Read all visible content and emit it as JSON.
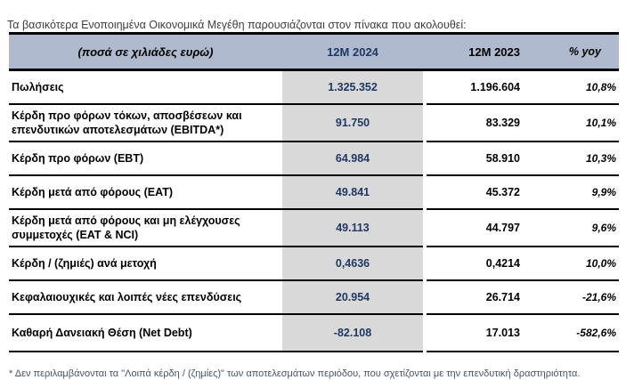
{
  "intro": "Τα βασικότερα Ενοποιημένα Οικονομικά Μεγέθη παρουσιάζονται στον πίνακα που ακολουθεί:",
  "table": {
    "header": {
      "label": "(ποσά σε χιλιάδες ευρώ)",
      "col_2024": "12M 2024",
      "col_2023": "12M 2023",
      "col_yoy": "% yoy"
    },
    "rows": [
      {
        "label": "Πωλήσεις",
        "v2024": "1.325.352",
        "v2023": "1.196.604",
        "yoy": "10,8%"
      },
      {
        "label": "Κέρδη προ φόρων τόκων, αποσβέσεων και επενδυτικών αποτελεσμάτων (EBITDA*)",
        "v2024": "91.750",
        "v2023": "83.329",
        "yoy": "10,1%"
      },
      {
        "label": "Κέρδη προ φόρων (EBT)",
        "v2024": "64.984",
        "v2023": "58.910",
        "yoy": "10,3%"
      },
      {
        "label": "Κέρδη μετά από φόρους (EAT)",
        "v2024": "49.841",
        "v2023": "45.372",
        "yoy": "9,9%"
      },
      {
        "label": "Κέρδη μετά από φόρους και μη ελέγχουσες συμμετοχές (EAT & NCI)",
        "v2024": "49.113",
        "v2023": "44.797",
        "yoy": "9,6%"
      },
      {
        "label": "Κέρδη / (ζημιές) ανά μετοχή",
        "v2024": "0,4636",
        "v2023": "0,4214",
        "yoy": "10,0%"
      },
      {
        "label": "Κεφαλαιουχικές και λοιπές νέες επενδύσεις",
        "v2024": "20.954",
        "v2023": "26.714",
        "yoy": "-21,6%"
      },
      {
        "label": "Καθαρή Δανειακή Θέση (Net Debt)",
        "v2024": "-82.108",
        "v2023": "17.013",
        "yoy": "-582,6%"
      }
    ]
  },
  "footnote": "* Δεν περιλαμβάνονται τα \"Λοιπά κέρδη / (ζημίες)\" των αποτελεσμάτων περιόδου, που σχετίζονται με την επενδυτική δραστηριότητα.",
  "colors": {
    "header_bg": "#afbace",
    "accent_navy": "#1f3864",
    "col_2024_bg": "#d9d9d9",
    "border": "#000000",
    "footnote_text": "#44546a"
  }
}
